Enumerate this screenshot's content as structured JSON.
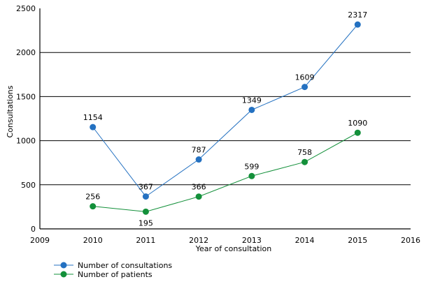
{
  "chart_data": {
    "type": "line",
    "title": "",
    "xlabel": "Year of consultation",
    "ylabel": "Consultations",
    "xlim": [
      2009,
      2016
    ],
    "ylim": [
      0,
      2500
    ],
    "x_ticks": [
      "2009",
      "2010",
      "2011",
      "2012",
      "2013",
      "2014",
      "2015",
      "2016"
    ],
    "y_ticks": [
      "0",
      "500",
      "1000",
      "1500",
      "2000",
      "2500"
    ],
    "grid": "horizontal",
    "legend_position": "bottom-left",
    "x": [
      2010,
      2011,
      2012,
      2013,
      2014,
      2015
    ],
    "series": [
      {
        "name": "Number of consultations",
        "color": "#2471c1",
        "values": [
          1154,
          367,
          787,
          1349,
          1609,
          2317
        ],
        "labels": [
          "1154",
          "367",
          "787",
          "1349",
          "1609",
          "2317"
        ]
      },
      {
        "name": "Number of patients",
        "color": "#13903a",
        "values": [
          256,
          195,
          366,
          599,
          758,
          1090
        ],
        "labels": [
          "256",
          "195",
          "366",
          "599",
          "758",
          "1090"
        ]
      }
    ]
  }
}
